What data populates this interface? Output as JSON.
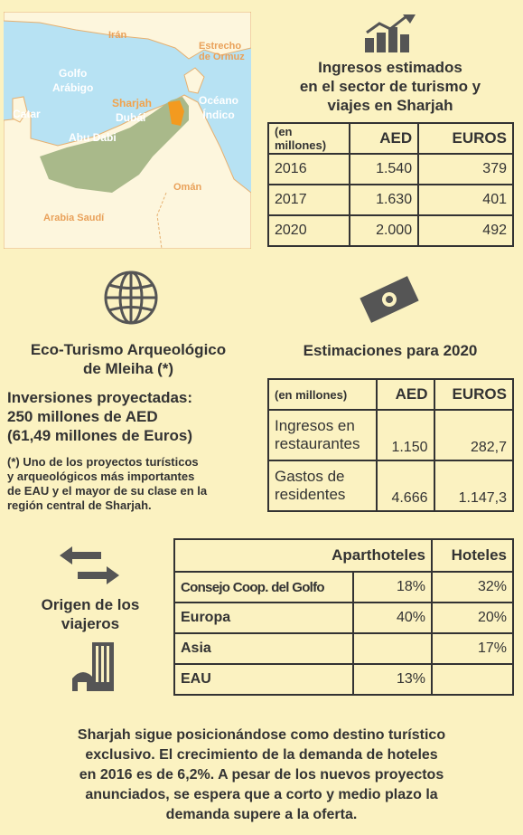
{
  "map": {
    "labels": {
      "iran": "Irán",
      "ormuz": "Estrecho\nde Ormuz",
      "golfo": "Golfo\nArábigo",
      "sharjah": "Sharjah",
      "dubai": "Dubái",
      "oceano": "Océano\nÍndico",
      "catar": "Catar",
      "abu_dabi": "Abu Dabi",
      "oman": "Omán",
      "arabia": "Arabia Saudí"
    },
    "colors": {
      "sea": "#b7e2f3",
      "land": "#fdf6dd",
      "uae": "#a9b98a",
      "sharjah": "#f39a1f"
    }
  },
  "income": {
    "title_lines": [
      "Ingresos estimados",
      "en el sector de turismo y",
      "viajes en Sharjah"
    ],
    "header": {
      "unit": "(en millones)",
      "aed": "AED",
      "euros": "EUROS"
    },
    "rows": [
      {
        "year": "2016",
        "aed": "1.540",
        "euros": "379"
      },
      {
        "year": "2017",
        "aed": "1.630",
        "euros": "401"
      },
      {
        "year": "2020",
        "aed": "2.000",
        "euros": "492"
      }
    ]
  },
  "eco": {
    "title_lines": [
      "Eco-Turismo Arqueológico",
      "de Mleiha (*)"
    ],
    "investment_lines": [
      "Inversiones proyectadas:",
      "250 millones de AED",
      "(61,49 millones de Euros)"
    ],
    "note_lines": [
      "(*) Uno de los proyectos turísticos",
      "y arqueológicos más importantes",
      "de EAU y el mayor de su clase en la",
      "región central de Sharjah."
    ]
  },
  "estimates": {
    "title": "Estimaciones para 2020",
    "header": {
      "unit": "(en millones)",
      "aed": "AED",
      "euros": "EUROS"
    },
    "rows": [
      {
        "label_lines": [
          "Ingresos en",
          "restaurantes"
        ],
        "aed": "1.150",
        "euros": "282,7"
      },
      {
        "label_lines": [
          "Gastos de",
          "residentes"
        ],
        "aed": "4.666",
        "euros": "1.147,3"
      }
    ]
  },
  "origin": {
    "title_lines": [
      "Origen de los",
      "viajeros"
    ],
    "header": {
      "apart": "Aparthoteles",
      "hotels": "Hoteles"
    },
    "rows": [
      {
        "label": "Consejo Coop. del Golfo",
        "apart": "18%",
        "hotels": "32%"
      },
      {
        "label": "Europa",
        "apart": "40%",
        "hotels": "20%"
      },
      {
        "label": "Asia",
        "apart": "",
        "hotels": "17%"
      },
      {
        "label": "EAU",
        "apart": "13%",
        "hotels": ""
      }
    ]
  },
  "footer_lines": [
    "Sharjah sigue posicionándose como destino turístico",
    "exclusivo. El crecimiento de la demanda de hoteles",
    "en 2016 es de 6,2%. A pesar de los nuevos proyectos",
    "anunciados, se espera que a corto y medio plazo la",
    "demanda supere a la oferta."
  ],
  "icons": [
    "bar-chart-icon",
    "globe-icon",
    "banknote-icon",
    "arrows-icon",
    "buildings-icon"
  ]
}
